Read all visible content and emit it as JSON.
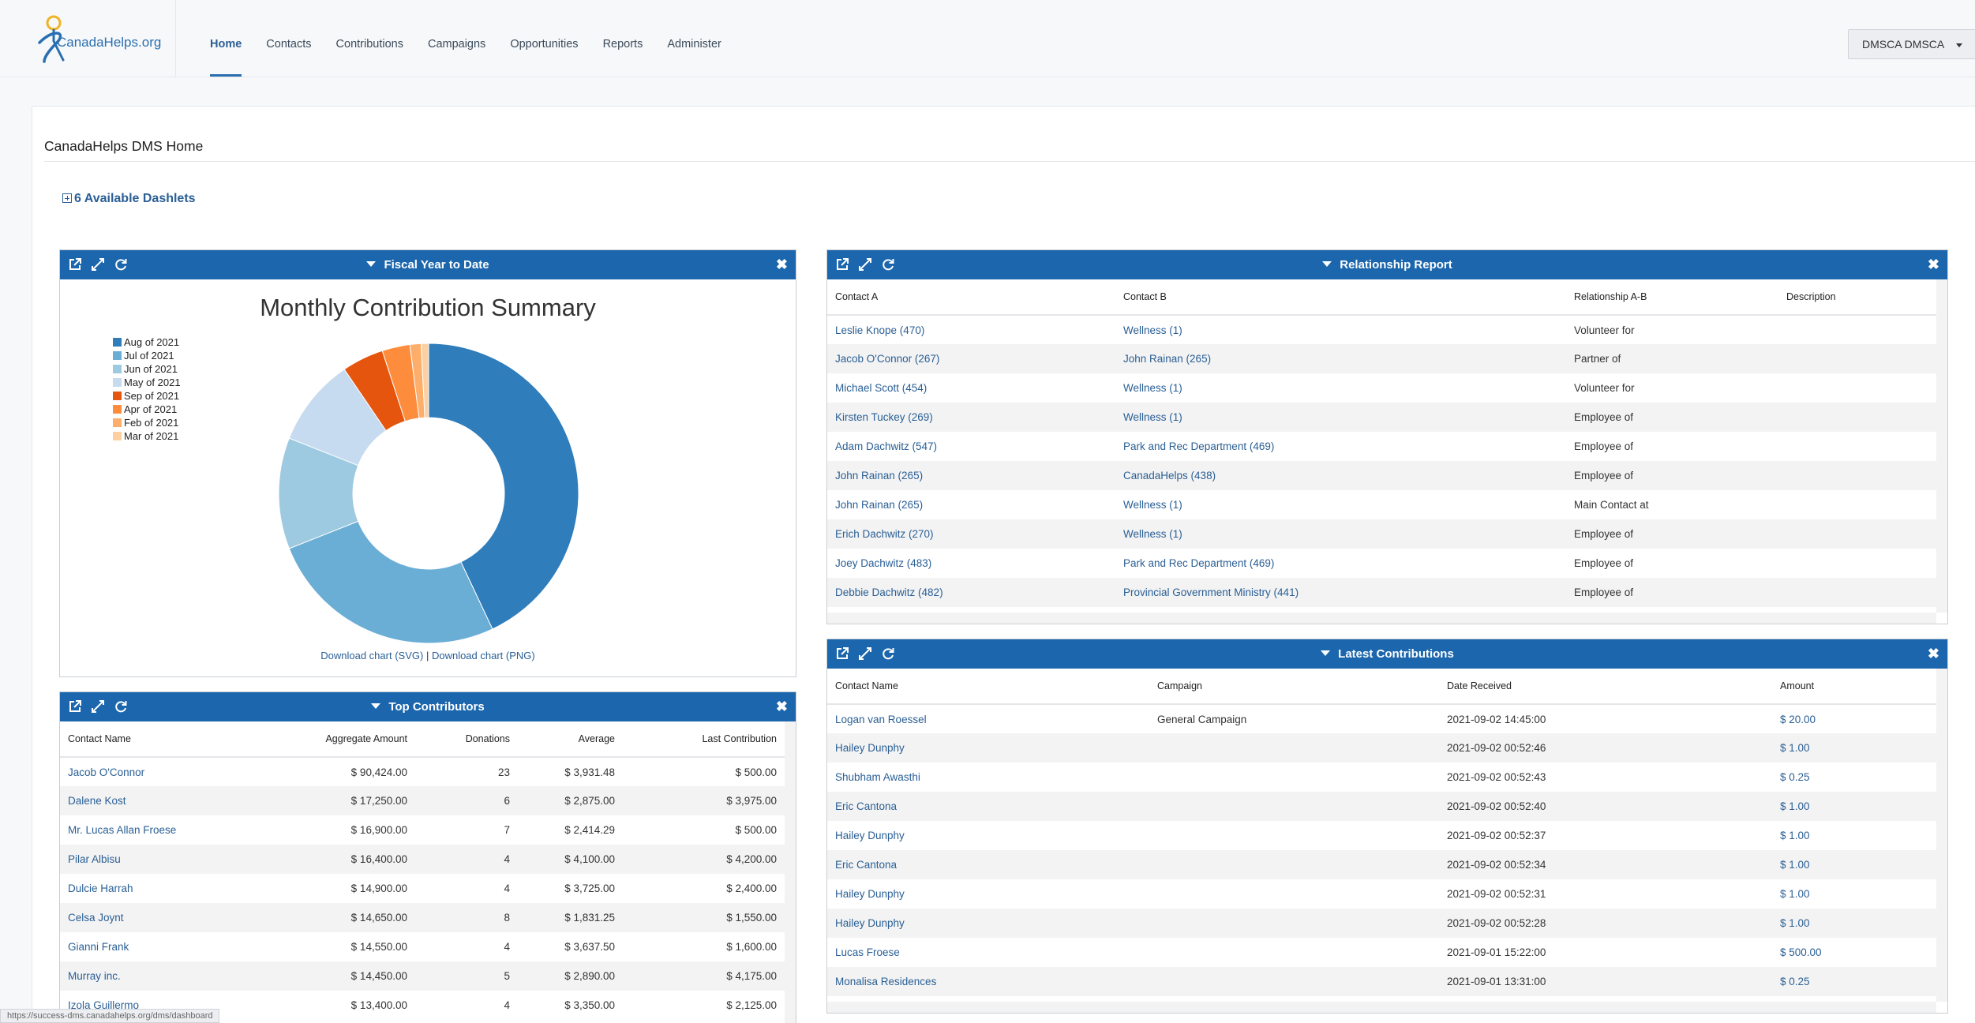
{
  "brand": {
    "logo_text": "CanadaHelps.org"
  },
  "nav": {
    "items": [
      "Home",
      "Contacts",
      "Contributions",
      "Campaigns",
      "Opportunities",
      "Reports",
      "Administer"
    ],
    "active": "Home"
  },
  "user_menu": {
    "label": "DMSCA DMSCA"
  },
  "page": {
    "title": "CanadaHelps DMS Home",
    "dashlets_toggle": "6 Available Dashlets"
  },
  "fiscal": {
    "header": "Fiscal Year to Date",
    "download_svg": "Download chart (SVG)",
    "separator": "|",
    "download_png": "Download chart (PNG)"
  },
  "chart_data": {
    "type": "pie",
    "title": "Monthly Contribution Summary",
    "donut": true,
    "legend_position": "left",
    "categories": [
      "Aug of 2021",
      "Jul of 2021",
      "Jun of 2021",
      "May of 2021",
      "Sep of 2021",
      "Apr of 2021",
      "Feb of 2021",
      "Mar of 2021"
    ],
    "values": [
      43,
      26,
      12,
      9.5,
      4.5,
      3,
      1.2,
      0.8
    ],
    "colors": [
      "#2f7dbb",
      "#6aaed6",
      "#9ecae1",
      "#c6dbef",
      "#e6550d",
      "#fd8d3c",
      "#fdae6b",
      "#fdd0a2"
    ]
  },
  "top_contributors": {
    "header": "Top Contributors",
    "columns": [
      "Contact Name",
      "Aggregate Amount",
      "Donations",
      "Average",
      "Last Contribution"
    ],
    "rows": [
      [
        "Jacob O'Connor",
        "$ 90,424.00",
        "23",
        "$ 3,931.48",
        "$ 500.00"
      ],
      [
        "Dalene Kost",
        "$ 17,250.00",
        "6",
        "$ 2,875.00",
        "$ 3,975.00"
      ],
      [
        "Mr. Lucas Allan Froese",
        "$ 16,900.00",
        "7",
        "$ 2,414.29",
        "$ 500.00"
      ],
      [
        "Pilar Albisu",
        "$ 16,400.00",
        "4",
        "$ 4,100.00",
        "$ 4,200.00"
      ],
      [
        "Dulcie Harrah",
        "$ 14,900.00",
        "4",
        "$ 3,725.00",
        "$ 2,400.00"
      ],
      [
        "Celsa Joynt",
        "$ 14,650.00",
        "8",
        "$ 1,831.25",
        "$ 1,550.00"
      ],
      [
        "Gianni Frank",
        "$ 14,550.00",
        "4",
        "$ 3,637.50",
        "$ 1,600.00"
      ],
      [
        "Murray inc.",
        "$ 14,450.00",
        "5",
        "$ 2,890.00",
        "$ 4,175.00"
      ],
      [
        "Izola Guillermo",
        "$ 13,400.00",
        "4",
        "$ 3,350.00",
        "$ 2,125.00"
      ]
    ]
  },
  "relationship": {
    "header": "Relationship Report",
    "columns": [
      "Contact A",
      "Contact B",
      "Relationship A-B",
      "Description"
    ],
    "rows": [
      [
        "Leslie Knope (470)",
        "Wellness (1)",
        "Volunteer for",
        ""
      ],
      [
        "Jacob O'Connor (267)",
        "John Rainan (265)",
        "Partner of",
        ""
      ],
      [
        "Michael Scott (454)",
        "Wellness (1)",
        "Volunteer for",
        ""
      ],
      [
        "Kirsten Tuckey (269)",
        "Wellness (1)",
        "Employee of",
        ""
      ],
      [
        "Adam Dachwitz (547)",
        "Park and Rec Department (469)",
        "Employee of",
        ""
      ],
      [
        "John Rainan (265)",
        "CanadaHelps (438)",
        "Employee of",
        ""
      ],
      [
        "John Rainan (265)",
        "Wellness (1)",
        "Main Contact at",
        ""
      ],
      [
        "Erich Dachwitz (270)",
        "Wellness (1)",
        "Employee of",
        ""
      ],
      [
        "Joey Dachwitz (483)",
        "Park and Rec Department (469)",
        "Employee of",
        ""
      ],
      [
        "Debbie Dachwitz (482)",
        "Provincial Government Ministry (441)",
        "Employee of",
        ""
      ]
    ]
  },
  "latest": {
    "header": "Latest Contributions",
    "columns": [
      "Contact Name",
      "Campaign",
      "Date Received",
      "Amount"
    ],
    "rows": [
      [
        "Logan van Roessel",
        "General Campaign",
        "2021-09-02 14:45:00",
        "$ 20.00"
      ],
      [
        "Hailey Dunphy",
        "",
        "2021-09-02 00:52:46",
        "$ 1.00"
      ],
      [
        "Shubham Awasthi",
        "",
        "2021-09-02 00:52:43",
        "$ 0.25"
      ],
      [
        "Eric Cantona",
        "",
        "2021-09-02 00:52:40",
        "$ 1.00"
      ],
      [
        "Hailey Dunphy",
        "",
        "2021-09-02 00:52:37",
        "$ 1.00"
      ],
      [
        "Eric Cantona",
        "",
        "2021-09-02 00:52:34",
        "$ 1.00"
      ],
      [
        "Hailey Dunphy",
        "",
        "2021-09-02 00:52:31",
        "$ 1.00"
      ],
      [
        "Hailey Dunphy",
        "",
        "2021-09-02 00:52:28",
        "$ 1.00"
      ],
      [
        "Lucas Froese",
        "",
        "2021-09-01 15:22:00",
        "$ 500.00"
      ],
      [
        "Monalisa Residences",
        "",
        "2021-09-01 13:31:00",
        "$ 0.25"
      ]
    ]
  },
  "status_url": "https://success-dms.canadahelps.org/dms/dashboard"
}
